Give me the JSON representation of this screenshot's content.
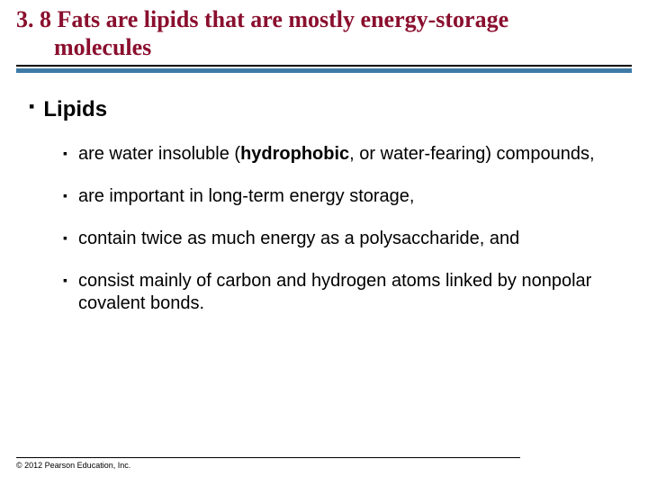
{
  "title": {
    "color": "#8a0f2e",
    "line1": "3. 8 Fats are lipids that are mostly energy-storage",
    "line2": "molecules",
    "underline_color": "#000000",
    "accent_bar_color": "#3e7aa6"
  },
  "heading": {
    "bullet": "▪",
    "text": "Lipids"
  },
  "bullets": [
    {
      "bullet": "▪",
      "pre": "are water insoluble (",
      "bold": "hydrophobic",
      "post": ", or water-fearing) compounds,"
    },
    {
      "bullet": "▪",
      "pre": "are important in long-term energy storage,",
      "bold": "",
      "post": ""
    },
    {
      "bullet": "▪",
      "pre": "contain twice as much energy as a polysaccharide, and",
      "bold": "",
      "post": ""
    },
    {
      "bullet": "▪",
      "pre": "consist mainly of carbon and hydrogen atoms linked by nonpolar covalent bonds.",
      "bold": "",
      "post": ""
    }
  ],
  "footer": {
    "text": "© 2012 Pearson Education, Inc."
  },
  "style": {
    "body_font": "Verdana",
    "title_font": "Times New Roman",
    "title_fontsize_pt": 20,
    "heading_fontsize_pt": 18,
    "bullet_fontsize_pt": 15,
    "footer_fontsize_pt": 7,
    "text_color": "#000000",
    "background_color": "#ffffff"
  }
}
